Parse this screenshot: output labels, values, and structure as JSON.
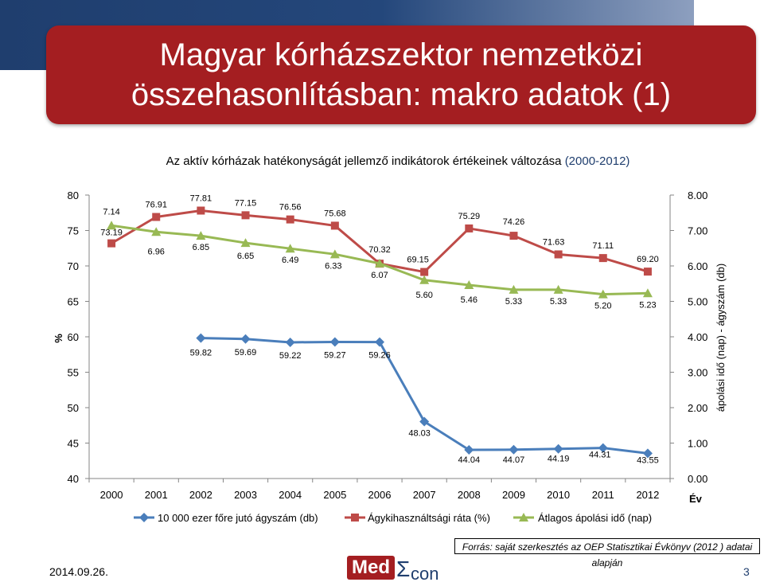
{
  "header": {
    "title": "Magyar kórházszektor nemzetközi összehasonlításban: makro adatok (1)"
  },
  "subtitle": {
    "main": "Az  aktív kórházak hatékonyságát jellemző indikátorok értékeinek változása",
    "range": "(2000-2012)"
  },
  "chart_data": {
    "type": "line",
    "categories": [
      "2000",
      "2001",
      "2002",
      "2003",
      "2004",
      "2005",
      "2006",
      "2007",
      "2008",
      "2009",
      "2010",
      "2011",
      "2012"
    ],
    "left_axis": {
      "label": "%",
      "ticks": [
        "80",
        "75",
        "70",
        "65",
        "60",
        "55",
        "50",
        "45",
        "40"
      ],
      "ylim": [
        40,
        80
      ]
    },
    "right_axis": {
      "label": "ápolási idő (nap) - ágyszám (db)",
      "ticks": [
        "8.00",
        "7.00",
        "6.00",
        "5.00",
        "4.00",
        "3.00",
        "2.00",
        "1.00",
        "0.00"
      ],
      "ylim": [
        0,
        8
      ]
    },
    "xlabel": "Év",
    "series": [
      {
        "name": "10 000 ezer főre jutó ágyszám (db)",
        "axis": "left",
        "color": "#4a7ebb",
        "marker": "diamond",
        "values": [
          null,
          null,
          59.82,
          59.69,
          59.22,
          59.27,
          59.26,
          48.03,
          44.04,
          44.07,
          44.19,
          44.31,
          43.55
        ],
        "labels": [
          "",
          "",
          "59.82",
          "59.69",
          "59.22",
          "59.27",
          "59.26",
          "48.03",
          "44.04",
          "44.07",
          "44.19",
          "44.31",
          "43.55"
        ]
      },
      {
        "name": "Ágykihasználtsági ráta (%)",
        "axis": "left",
        "color": "#be4b48",
        "marker": "square",
        "values": [
          73.19,
          76.91,
          77.81,
          77.15,
          76.56,
          75.68,
          70.32,
          69.15,
          75.29,
          74.26,
          71.63,
          71.11,
          69.2
        ],
        "labels": [
          "73.19",
          "76.91",
          "77.81",
          "77.15",
          "76.56",
          "75.68",
          "70.32",
          "69.15",
          "75.29",
          "74.26",
          "71.63",
          "71.11",
          "69.20"
        ]
      },
      {
        "name": "Átlagos ápolási idő (nap)",
        "axis": "right",
        "color": "#98b954",
        "marker": "triangle",
        "values": [
          7.14,
          6.96,
          6.85,
          6.65,
          6.49,
          6.33,
          6.07,
          5.6,
          5.46,
          5.33,
          5.33,
          5.2,
          5.23
        ],
        "labels": [
          "7.14",
          "6.96",
          "6.85",
          "6.65",
          "6.49",
          "6.33",
          "6.07",
          "5.60",
          "5.46",
          "5.33",
          "5.33",
          "5.20",
          "5.23"
        ]
      }
    ],
    "legend_position": "bottom",
    "grid": false
  },
  "footer": {
    "source": "Forrás: saját szerkesztés az OEP Statisztikai  Évkönyv  (2012 ) adatai alapján",
    "date": "2014.09.26.",
    "page": "3",
    "logo_med": "Med",
    "logo_sigma": "Σ",
    "logo_con": "con"
  }
}
